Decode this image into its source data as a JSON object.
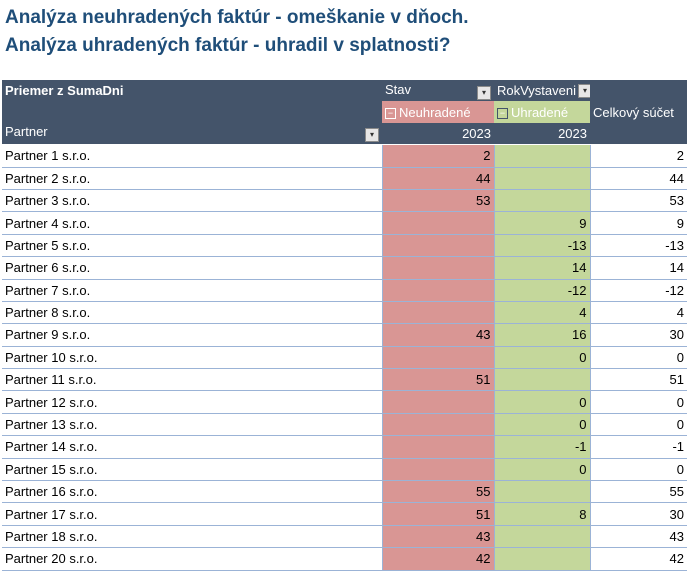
{
  "titles": [
    "Analýza neuhradených faktúr - omeškanie v dňoch.",
    "Analýza uhradených faktúr - uhradil v splatnosti?"
  ],
  "pivot": {
    "value_field": "Priemer z SumaDni",
    "col_field_1": "Stav",
    "col_field_2": "RokVystaveni",
    "row_field": "Partner",
    "col_neuhradene": "Neuhradené",
    "col_uhradene": "Uhradené",
    "grand_total": "Celkový súčet",
    "year_n": "2023",
    "year_u": "2023",
    "rows": [
      {
        "partner": "Partner 1 s.r.o.",
        "n": "2",
        "u": "",
        "t": "2"
      },
      {
        "partner": "Partner 2 s.r.o.",
        "n": "44",
        "u": "",
        "t": "44"
      },
      {
        "partner": "Partner 3 s.r.o.",
        "n": "53",
        "u": "",
        "t": "53"
      },
      {
        "partner": "Partner 4 s.r.o.",
        "n": "",
        "u": "9",
        "t": "9"
      },
      {
        "partner": "Partner 5 s.r.o.",
        "n": "",
        "u": "-13",
        "t": "-13"
      },
      {
        "partner": "Partner 6 s.r.o.",
        "n": "",
        "u": "14",
        "t": "14"
      },
      {
        "partner": "Partner 7 s.r.o.",
        "n": "",
        "u": "-12",
        "t": "-12"
      },
      {
        "partner": "Partner 8 s.r.o.",
        "n": "",
        "u": "4",
        "t": "4"
      },
      {
        "partner": "Partner 9 s.r.o.",
        "n": "43",
        "u": "16",
        "t": "30"
      },
      {
        "partner": "Partner 10 s.r.o.",
        "n": "",
        "u": "0",
        "t": "0"
      },
      {
        "partner": "Partner 11 s.r.o.",
        "n": "51",
        "u": "",
        "t": "51"
      },
      {
        "partner": "Partner 12 s.r.o.",
        "n": "",
        "u": "0",
        "t": "0"
      },
      {
        "partner": "Partner 13 s.r.o.",
        "n": "",
        "u": "0",
        "t": "0"
      },
      {
        "partner": "Partner 14 s.r.o.",
        "n": "",
        "u": "-1",
        "t": "-1"
      },
      {
        "partner": "Partner 15 s.r.o.",
        "n": "",
        "u": "0",
        "t": "0"
      },
      {
        "partner": "Partner 16 s.r.o.",
        "n": "55",
        "u": "",
        "t": "55"
      },
      {
        "partner": "Partner 17 s.r.o.",
        "n": "51",
        "u": "8",
        "t": "30"
      },
      {
        "partner": "Partner 18 s.r.o.",
        "n": "43",
        "u": "",
        "t": "43"
      },
      {
        "partner": "Partner 20 s.r.o.",
        "n": "42",
        "u": "",
        "t": "42"
      }
    ]
  },
  "colors": {
    "header_bg": "#44546a",
    "neuhradene": "#d99694",
    "uhradene": "#c4d79b",
    "title": "#1f4e79"
  }
}
